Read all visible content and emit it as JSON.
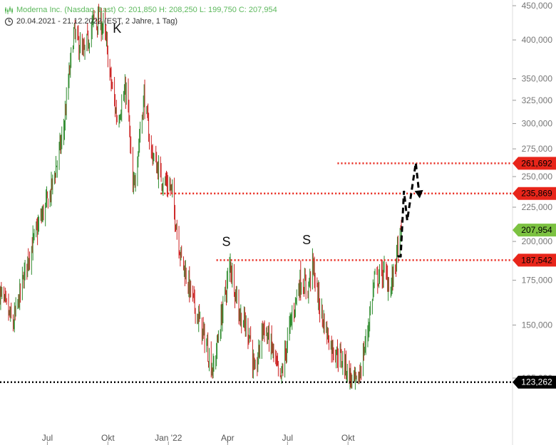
{
  "header": {
    "line1": "Moderna Inc. (Nasdaq, Last)  O: 201,850  H: 208,250  L: 199,750  C: 207,954",
    "line2": "20.04.2021 - 21.12.2022  (EST, 2 Jahre, 1 Tag)"
  },
  "colors": {
    "up": "#2e8b2e",
    "down": "#cc2222",
    "resistance": "#e8251a",
    "support": "#000000",
    "current": "#7cc241"
  },
  "chart_data": {
    "type": "candlestick",
    "title": "Moderna Inc. (Nasdaq, Last)",
    "date_range": [
      "2021-04-20",
      "2022-12-21"
    ],
    "last_bar": {
      "open": 201.85,
      "high": 208.25,
      "low": 199.75,
      "close": 207.954
    },
    "y_axis_scale": "log",
    "y_axis_ticks": [
      {
        "value": 450,
        "label": "450,000"
      },
      {
        "value": 400,
        "label": "400,000"
      },
      {
        "value": 350,
        "label": "350,000"
      },
      {
        "value": 325,
        "label": "325,000"
      },
      {
        "value": 300,
        "label": "300,000"
      },
      {
        "value": 275,
        "label": "275,000"
      },
      {
        "value": 250,
        "label": "250,000"
      },
      {
        "value": 225,
        "label": "225,000"
      },
      {
        "value": 200,
        "label": "200,000"
      },
      {
        "value": 175,
        "label": "175,000"
      },
      {
        "value": 150,
        "label": "150,000"
      },
      {
        "value": 125,
        "label": "125,000"
      }
    ],
    "x_axis_ticks": [
      {
        "date": "2021-07-01",
        "label": "Jul"
      },
      {
        "date": "2021-10-01",
        "label": "Okt"
      },
      {
        "date": "2022-01-01",
        "label": "Jan '22"
      },
      {
        "date": "2022-04-01",
        "label": "Apr"
      },
      {
        "date": "2022-07-01",
        "label": "Jul"
      },
      {
        "date": "2022-10-01",
        "label": "Okt"
      }
    ],
    "price_path": [
      [
        "2021-04-20",
        168
      ],
      [
        "2021-05-10",
        150
      ],
      [
        "2021-06-01",
        188
      ],
      [
        "2021-06-20",
        215
      ],
      [
        "2021-07-05",
        235
      ],
      [
        "2021-07-25",
        290
      ],
      [
        "2021-08-10",
        410
      ],
      [
        "2021-08-25",
        380
      ],
      [
        "2021-09-10",
        430
      ],
      [
        "2021-09-25",
        420
      ],
      [
        "2021-10-05",
        350
      ],
      [
        "2021-10-15",
        305
      ],
      [
        "2021-10-30",
        340
      ],
      [
        "2021-11-08",
        235
      ],
      [
        "2021-11-25",
        330
      ],
      [
        "2021-12-05",
        275
      ],
      [
        "2021-12-20",
        250
      ],
      [
        "2022-01-05",
        240
      ],
      [
        "2022-01-20",
        190
      ],
      [
        "2022-02-10",
        160
      ],
      [
        "2022-02-28",
        140
      ],
      [
        "2022-03-10",
        128
      ],
      [
        "2022-03-25",
        160
      ],
      [
        "2022-04-05",
        185
      ],
      [
        "2022-04-20",
        155
      ],
      [
        "2022-05-05",
        145
      ],
      [
        "2022-05-12",
        125
      ],
      [
        "2022-05-25",
        150
      ],
      [
        "2022-06-08",
        138
      ],
      [
        "2022-06-20",
        123
      ],
      [
        "2022-07-05",
        150
      ],
      [
        "2022-07-20",
        175
      ],
      [
        "2022-08-01",
        170
      ],
      [
        "2022-08-08",
        185
      ],
      [
        "2022-08-20",
        158
      ],
      [
        "2022-09-05",
        140
      ],
      [
        "2022-09-25",
        132
      ],
      [
        "2022-10-05",
        125
      ],
      [
        "2022-10-15",
        122
      ],
      [
        "2022-10-30",
        145
      ],
      [
        "2022-11-10",
        175
      ],
      [
        "2022-11-25",
        180
      ],
      [
        "2022-12-05",
        170
      ],
      [
        "2022-12-21",
        207.954
      ]
    ],
    "horizontal_lines": [
      {
        "value": 261.692,
        "label": "261,692",
        "style": "dotted",
        "color": "#e8251a",
        "from": "2022-09-15"
      },
      {
        "value": 235.869,
        "label": "235,869",
        "style": "dotted",
        "color": "#e8251a",
        "from": "2021-12-20"
      },
      {
        "value": 187.542,
        "label": "187,542",
        "style": "dotted",
        "color": "#e8251a",
        "from": "2022-03-15"
      },
      {
        "value": 123.262,
        "label": "123,262",
        "style": "dotted",
        "color": "#000000",
        "from": "2021-04-20"
      }
    ],
    "current_price_label": {
      "value": 207.954,
      "label": "207,954"
    },
    "annotations": [
      {
        "text": "K",
        "date": "2021-10-15",
        "value": 410
      },
      {
        "text": "S",
        "date": "2022-03-30",
        "value": 197
      },
      {
        "text": "S",
        "date": "2022-07-30",
        "value": 198
      }
    ],
    "projection": [
      [
        "2022-12-15",
        190
      ],
      [
        "2022-12-20",
        190
      ],
      [
        "2022-12-25",
        238
      ],
      [
        "2022-12-30",
        215
      ],
      [
        "2023-01-12",
        262
      ],
      [
        "2023-01-18",
        232
      ]
    ]
  }
}
